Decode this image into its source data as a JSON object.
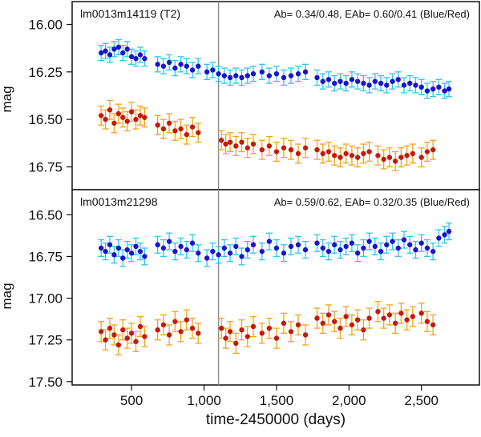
{
  "colors": {
    "blue_point": "#1a16c8",
    "blue_err": "#2fc4ef",
    "red_point": "#c41a0a",
    "red_err": "#f3a21c",
    "vline": "#8f8f8f",
    "frame": "#111111"
  },
  "chart_data": [
    {
      "type": "scatter",
      "title": "lm0013m14119 (T2)",
      "annotation": "Ab= 0.34/0.48, EAb= 0.60/0.41  (Blue/Red)",
      "ylabel": "mag",
      "xlabel": "",
      "xlim": [
        90,
        2900
      ],
      "ylim": [
        15.88,
        16.87
      ],
      "y_inverted": true,
      "yticks": [
        16.0,
        16.25,
        16.5,
        16.75
      ],
      "ytick_labels": [
        "16.00",
        "16.25",
        "16.50",
        "16.75"
      ],
      "vline_x": 1100,
      "series": [
        {
          "name": "Blue",
          "error": 0.04,
          "x": [
            290,
            320,
            350,
            380,
            410,
            440,
            470,
            500,
            530,
            560,
            590,
            680,
            720,
            760,
            800,
            840,
            880,
            920,
            960,
            1020,
            1060,
            1100,
            1140,
            1180,
            1220,
            1260,
            1300,
            1340,
            1400,
            1450,
            1500,
            1550,
            1600,
            1650,
            1700,
            1780,
            1820,
            1860,
            1900,
            1940,
            1980,
            2020,
            2060,
            2100,
            2140,
            2180,
            2220,
            2260,
            2300,
            2340,
            2380,
            2420,
            2460,
            2500,
            2540,
            2580,
            2620,
            2660,
            2690
          ],
          "values": [
            16.15,
            16.14,
            16.16,
            16.13,
            16.12,
            16.15,
            16.13,
            16.17,
            16.18,
            16.16,
            16.18,
            16.21,
            16.22,
            16.2,
            16.23,
            16.21,
            16.22,
            16.24,
            16.22,
            16.25,
            16.24,
            16.26,
            16.27,
            16.28,
            16.27,
            16.28,
            16.27,
            16.26,
            16.25,
            16.27,
            16.26,
            16.28,
            16.27,
            16.26,
            16.25,
            16.28,
            16.3,
            16.29,
            16.31,
            16.3,
            16.31,
            16.29,
            16.3,
            16.31,
            16.32,
            16.3,
            16.31,
            16.32,
            16.3,
            16.29,
            16.32,
            16.31,
            16.32,
            16.33,
            16.35,
            16.34,
            16.33,
            16.35,
            16.34
          ]
        },
        {
          "name": "Red",
          "error": 0.05,
          "x": [
            290,
            320,
            350,
            380,
            410,
            440,
            470,
            500,
            530,
            560,
            590,
            680,
            720,
            760,
            800,
            840,
            880,
            920,
            960,
            1120,
            1150,
            1180,
            1220,
            1260,
            1300,
            1340,
            1400,
            1450,
            1500,
            1550,
            1600,
            1650,
            1700,
            1780,
            1820,
            1860,
            1900,
            1940,
            1980,
            2020,
            2060,
            2100,
            2140,
            2200,
            2240,
            2280,
            2320,
            2360,
            2400,
            2440,
            2500,
            2540,
            2580
          ],
          "values": [
            16.48,
            16.5,
            16.45,
            16.52,
            16.47,
            16.49,
            16.51,
            16.46,
            16.5,
            16.48,
            16.49,
            16.53,
            16.55,
            16.52,
            16.56,
            16.55,
            16.58,
            16.54,
            16.57,
            16.61,
            16.63,
            16.62,
            16.64,
            16.62,
            16.65,
            16.63,
            16.66,
            16.64,
            16.67,
            16.65,
            16.66,
            16.68,
            16.65,
            16.66,
            16.68,
            16.67,
            16.69,
            16.7,
            16.68,
            16.69,
            16.7,
            16.68,
            16.67,
            16.69,
            16.71,
            16.7,
            16.72,
            16.7,
            16.69,
            16.68,
            16.7,
            16.67,
            16.66
          ]
        }
      ]
    },
    {
      "type": "scatter",
      "title": "lm0013m21298",
      "annotation": "Ab= 0.59/0.62, EAb= 0.32/0.35  (Blue/Red)",
      "ylabel": "mag",
      "xlabel": "time-2450000 (days)",
      "xlim": [
        90,
        2900
      ],
      "xticks": [
        500,
        1000,
        1500,
        2000,
        2500
      ],
      "xtick_labels": [
        "500",
        "1,000",
        "1,500",
        "2,000",
        "2,500"
      ],
      "ylim": [
        16.35,
        17.52
      ],
      "y_inverted": true,
      "yticks": [
        16.5,
        16.75,
        17.0,
        17.25,
        17.5
      ],
      "ytick_labels": [
        "16.50",
        "16.75",
        "17.00",
        "17.25",
        "17.50"
      ],
      "vline_x": 1100,
      "series": [
        {
          "name": "Blue",
          "error": 0.05,
          "x": [
            290,
            320,
            350,
            380,
            410,
            440,
            470,
            500,
            530,
            560,
            590,
            680,
            720,
            760,
            800,
            840,
            880,
            920,
            960,
            1020,
            1060,
            1100,
            1140,
            1180,
            1220,
            1260,
            1300,
            1340,
            1400,
            1450,
            1500,
            1550,
            1600,
            1650,
            1700,
            1780,
            1820,
            1860,
            1900,
            1940,
            1980,
            2020,
            2060,
            2100,
            2140,
            2180,
            2220,
            2260,
            2300,
            2340,
            2380,
            2420,
            2460,
            2500,
            2540,
            2580,
            2620,
            2660,
            2690
          ],
          "values": [
            16.7,
            16.72,
            16.68,
            16.74,
            16.7,
            16.76,
            16.71,
            16.73,
            16.69,
            16.72,
            16.75,
            16.68,
            16.7,
            16.66,
            16.72,
            16.69,
            16.71,
            16.67,
            16.73,
            16.76,
            16.72,
            16.74,
            16.7,
            16.73,
            16.69,
            16.75,
            16.71,
            16.68,
            16.72,
            16.66,
            16.7,
            16.73,
            16.69,
            16.68,
            16.71,
            16.67,
            16.7,
            16.72,
            16.68,
            16.71,
            16.69,
            16.67,
            16.73,
            16.7,
            16.66,
            16.69,
            16.72,
            16.68,
            16.66,
            16.7,
            16.65,
            16.68,
            16.71,
            16.67,
            16.7,
            16.72,
            16.64,
            16.62,
            16.6
          ]
        },
        {
          "name": "Red",
          "error": 0.06,
          "x": [
            290,
            320,
            350,
            380,
            410,
            440,
            470,
            500,
            530,
            560,
            590,
            680,
            720,
            760,
            800,
            840,
            880,
            920,
            960,
            1120,
            1150,
            1180,
            1220,
            1260,
            1300,
            1340,
            1400,
            1450,
            1500,
            1550,
            1600,
            1650,
            1700,
            1780,
            1820,
            1860,
            1900,
            1940,
            1980,
            2020,
            2060,
            2100,
            2140,
            2200,
            2240,
            2280,
            2320,
            2360,
            2400,
            2440,
            2500,
            2540,
            2580
          ],
          "values": [
            17.2,
            17.25,
            17.18,
            17.22,
            17.28,
            17.19,
            17.24,
            17.21,
            17.26,
            17.17,
            17.23,
            17.19,
            17.16,
            17.22,
            17.14,
            17.2,
            17.13,
            17.18,
            17.21,
            17.18,
            17.24,
            17.2,
            17.27,
            17.19,
            17.23,
            17.17,
            17.21,
            17.18,
            17.24,
            17.15,
            17.2,
            17.16,
            17.22,
            17.12,
            17.15,
            17.1,
            17.14,
            17.18,
            17.11,
            17.16,
            17.13,
            17.19,
            17.12,
            17.08,
            17.12,
            17.1,
            17.15,
            17.09,
            17.13,
            17.11,
            17.09,
            17.14,
            17.16
          ]
        }
      ]
    }
  ]
}
